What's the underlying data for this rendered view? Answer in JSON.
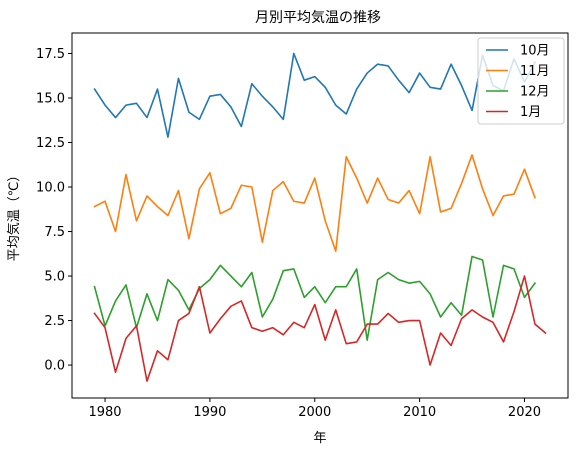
{
  "chart_data": {
    "type": "line",
    "title": "月別平均気温の推移",
    "xlabel": "年",
    "ylabel": "平均気温（℃）",
    "xlim": [
      1976.85,
      2024.15
    ],
    "ylim": [
      -1.85,
      18.65
    ],
    "x_ticks": [
      1980,
      1990,
      2000,
      2010,
      2020
    ],
    "x_tick_labels": [
      "1980",
      "1990",
      "2000",
      "2010",
      "2020"
    ],
    "y_ticks": [
      0.0,
      2.5,
      5.0,
      7.5,
      10.0,
      12.5,
      15.0,
      17.5
    ],
    "y_tick_labels": [
      "0.0",
      "2.5",
      "5.0",
      "7.5",
      "10.0",
      "12.5",
      "15.0",
      "17.5"
    ],
    "grid": false,
    "legend_position": "top-right",
    "series": [
      {
        "name": "10月",
        "color": "#1f77b4",
        "x": [
          1979,
          1980,
          1981,
          1982,
          1983,
          1984,
          1985,
          1986,
          1987,
          1988,
          1989,
          1990,
          1991,
          1992,
          1993,
          1994,
          1995,
          1996,
          1997,
          1998,
          1999,
          2000,
          2001,
          2002,
          2003,
          2004,
          2005,
          2006,
          2007,
          2008,
          2009,
          2010,
          2011,
          2012,
          2013,
          2014,
          2015,
          2016,
          2017,
          2018,
          2019,
          2020,
          2021
        ],
        "values": [
          15.5,
          14.6,
          13.9,
          14.6,
          14.7,
          13.9,
          15.5,
          12.8,
          16.1,
          14.2,
          13.8,
          15.1,
          15.2,
          14.5,
          13.4,
          15.8,
          15.1,
          14.5,
          13.8,
          17.5,
          16.0,
          16.2,
          15.6,
          14.6,
          14.1,
          15.5,
          16.4,
          16.9,
          16.8,
          16.0,
          15.3,
          16.4,
          15.6,
          15.5,
          16.9,
          15.7,
          14.3,
          17.4,
          15.7,
          15.4,
          17.2,
          15.9,
          17.0
        ]
      },
      {
        "name": "11月",
        "color": "#ff7f0e",
        "x": [
          1979,
          1980,
          1981,
          1982,
          1983,
          1984,
          1985,
          1986,
          1987,
          1988,
          1989,
          1990,
          1991,
          1992,
          1993,
          1994,
          1995,
          1996,
          1997,
          1998,
          1999,
          2000,
          2001,
          2002,
          2003,
          2004,
          2005,
          2006,
          2007,
          2008,
          2009,
          2010,
          2011,
          2012,
          2013,
          2014,
          2015,
          2016,
          2017,
          2018,
          2019,
          2020,
          2021
        ],
        "values": [
          8.9,
          9.2,
          7.5,
          10.7,
          8.1,
          9.5,
          8.9,
          8.4,
          9.8,
          7.1,
          9.9,
          10.8,
          8.5,
          8.8,
          10.1,
          10.0,
          6.9,
          9.8,
          10.3,
          9.2,
          9.1,
          10.5,
          8.1,
          6.4,
          11.7,
          10.5,
          9.1,
          10.5,
          9.3,
          9.1,
          9.8,
          8.5,
          11.7,
          8.6,
          8.8,
          10.2,
          11.8,
          9.9,
          8.4,
          9.5,
          9.6,
          11.0,
          9.4
        ]
      },
      {
        "name": "12月",
        "color": "#2ca02c",
        "x": [
          1979,
          1980,
          1981,
          1982,
          1983,
          1984,
          1985,
          1986,
          1987,
          1988,
          1989,
          1990,
          1991,
          1992,
          1993,
          1994,
          1995,
          1996,
          1997,
          1998,
          1999,
          2000,
          2001,
          2002,
          2003,
          2004,
          2005,
          2006,
          2007,
          2008,
          2009,
          2010,
          2011,
          2012,
          2013,
          2014,
          2015,
          2016,
          2017,
          2018,
          2019,
          2020,
          2021
        ],
        "values": [
          4.4,
          2.2,
          3.6,
          4.5,
          2.1,
          4.0,
          2.5,
          4.8,
          4.2,
          3.1,
          4.3,
          4.8,
          5.6,
          5.0,
          4.4,
          5.2,
          2.7,
          3.7,
          5.3,
          5.4,
          3.8,
          4.4,
          3.5,
          4.4,
          4.4,
          5.4,
          1.4,
          4.8,
          5.2,
          4.8,
          4.6,
          4.7,
          4.0,
          2.7,
          3.5,
          2.8,
          6.1,
          5.9,
          2.7,
          5.6,
          5.4,
          3.8,
          4.6
        ]
      },
      {
        "name": "1月",
        "color": "#d62728",
        "x": [
          1979,
          1980,
          1981,
          1982,
          1983,
          1984,
          1985,
          1986,
          1987,
          1988,
          1989,
          1990,
          1991,
          1992,
          1993,
          1994,
          1995,
          1996,
          1997,
          1998,
          1999,
          2000,
          2001,
          2002,
          2003,
          2004,
          2005,
          2006,
          2007,
          2008,
          2009,
          2010,
          2011,
          2012,
          2013,
          2014,
          2015,
          2016,
          2017,
          2018,
          2019,
          2020,
          2021,
          2022
        ],
        "values": [
          2.9,
          2.1,
          -0.4,
          1.5,
          2.2,
          -0.9,
          0.8,
          0.3,
          2.5,
          2.9,
          4.4,
          1.8,
          2.6,
          3.3,
          3.6,
          2.1,
          1.9,
          2.1,
          1.7,
          2.4,
          2.1,
          3.4,
          1.4,
          3.1,
          1.2,
          1.3,
          2.3,
          2.3,
          2.9,
          2.4,
          2.5,
          2.5,
          0.0,
          1.8,
          1.1,
          2.6,
          3.1,
          2.7,
          2.4,
          1.3,
          3.0,
          5.0,
          2.3,
          1.8
        ]
      }
    ]
  }
}
